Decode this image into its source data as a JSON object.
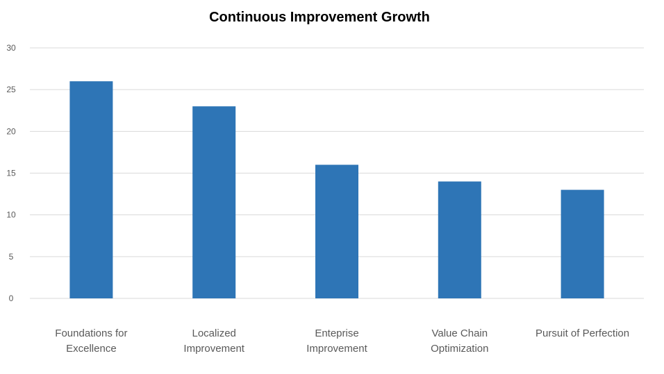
{
  "chart_data": {
    "type": "bar",
    "title": "Continuous Improvement Growth",
    "categories": [
      [
        "Foundations for",
        "Excellence"
      ],
      [
        "Localized",
        "Improvement"
      ],
      [
        "Enteprise",
        "Improvement"
      ],
      [
        "Value Chain",
        "Optimization"
      ],
      [
        "Pursuit of Perfection"
      ]
    ],
    "values": [
      26,
      23,
      16,
      14,
      13
    ],
    "ylim": [
      0,
      30
    ],
    "yticks": [
      0,
      5,
      10,
      15,
      20,
      25,
      30
    ],
    "xlabel": "",
    "ylabel": "",
    "grid": true,
    "legend": "none",
    "bar_color": "#2E75B6",
    "grid_color": "#D9D9D9"
  }
}
